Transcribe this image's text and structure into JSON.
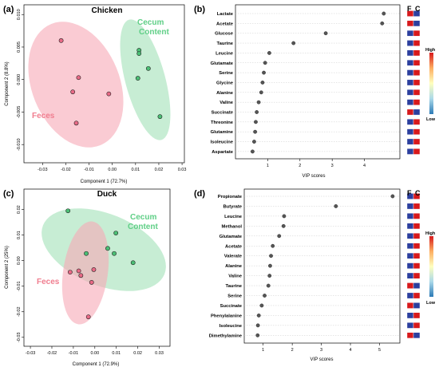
{
  "colors": {
    "feces": "#f07d8f",
    "cecum": "#5fcf86",
    "heat_high": "#d7191c",
    "heat_low": "#2c3f9e",
    "point": "#555555"
  },
  "chart_data": [
    {
      "id": "a",
      "type": "scatter",
      "panel_label": "(a)",
      "title": "Chicken",
      "xlabel": "Component 1 (72.7%)",
      "ylabel": "Component 2 (8.8%)",
      "xlim": [
        -0.038,
        0.031
      ],
      "ylim": [
        -0.0128,
        0.0115
      ],
      "xticks": [
        -0.03,
        -0.02,
        -0.01,
        0.0,
        0.01,
        0.02,
        0.03
      ],
      "xtick_labels": [
        "-0.03",
        "-0.02",
        "-0.01",
        "0.00",
        "0.01",
        "0.02",
        "0.03"
      ],
      "yticks": [
        -0.01,
        -0.005,
        0.0,
        0.005,
        0.01
      ],
      "ytick_labels": [
        "-0.010",
        "-0.005",
        "0.000",
        "0.005",
        "0.010"
      ],
      "grid": false,
      "series": [
        {
          "name": "Feces",
          "points": [
            [
              -0.022,
              0.006
            ],
            [
              -0.0145,
              0.0003
            ],
            [
              -0.017,
              -0.0019
            ],
            [
              -0.0015,
              -0.0022
            ],
            [
              -0.0155,
              -0.0067
            ]
          ]
        },
        {
          "name": "Cecum Content",
          "points": [
            [
              0.0115,
              0.0045
            ],
            [
              0.0115,
              0.004
            ],
            [
              0.0155,
              0.0017
            ],
            [
              0.011,
              0.0002
            ],
            [
              0.0205,
              -0.0057
            ]
          ]
        }
      ]
    },
    {
      "id": "b",
      "type": "scatter",
      "panel_label": "(b)",
      "title": "",
      "xlabel": "VIP scores",
      "xlim": [
        0.0,
        5.1
      ],
      "xticks": [
        1,
        2,
        3,
        4
      ],
      "xtick_labels": [
        "1",
        "2",
        "3",
        "4"
      ],
      "grid": true,
      "categories": [
        "Lactate",
        "Acetate",
        "Glucose",
        "Taurine",
        "Leucine",
        "Glutamate",
        "Serine",
        "Glycine",
        "Alanine",
        "Valine",
        "Succinate",
        "Threonine",
        "Glutamine",
        "Isoleucine",
        "Aspartate"
      ],
      "values": [
        4.6,
        4.55,
        2.8,
        1.8,
        1.05,
        0.92,
        0.88,
        0.84,
        0.8,
        0.72,
        0.66,
        0.63,
        0.61,
        0.58,
        0.53
      ],
      "heatmap_columns": [
        "F",
        "C"
      ],
      "heatmap_f_high": [
        true,
        true,
        false,
        false,
        false,
        false,
        false,
        false,
        false,
        false,
        true,
        false,
        false,
        false,
        false
      ],
      "colorbar": {
        "high": "High",
        "low": "Low"
      }
    },
    {
      "id": "c",
      "type": "scatter",
      "panel_label": "(c)",
      "title": "Duck",
      "xlabel": "Component 1 (72.9%)",
      "ylabel": "Component 2 (25%)",
      "xlim": [
        -0.033,
        0.035
      ],
      "ylim": [
        -0.0335,
        0.028
      ],
      "xticks": [
        -0.03,
        -0.02,
        -0.01,
        0.0,
        0.01,
        0.02,
        0.03
      ],
      "xtick_labels": [
        "-0.03",
        "-0.02",
        "-0.01",
        "0.00",
        "0.01",
        "0.02",
        "0.03"
      ],
      "yticks": [
        -0.03,
        -0.02,
        -0.01,
        0.0,
        0.01,
        0.02
      ],
      "ytick_labels": [
        "-0.03",
        "-0.02",
        "-0.01",
        "0.00",
        "0.01",
        "0.02"
      ],
      "grid": false,
      "series": [
        {
          "name": "Feces",
          "points": [
            [
              -0.0115,
              -0.0045
            ],
            [
              -0.0075,
              -0.004
            ],
            [
              -0.0065,
              -0.0058
            ],
            [
              -0.0005,
              -0.0035
            ],
            [
              -0.0015,
              -0.0085
            ],
            [
              -0.003,
              -0.022
            ]
          ]
        },
        {
          "name": "Cecum Content",
          "points": [
            [
              -0.0125,
              0.0195
            ],
            [
              0.0098,
              0.0108
            ],
            [
              0.006,
              0.0048
            ],
            [
              -0.004,
              0.0028
            ],
            [
              0.009,
              0.0028
            ],
            [
              0.0178,
              -0.0008
            ]
          ]
        }
      ]
    },
    {
      "id": "d",
      "type": "scatter",
      "panel_label": "(d)",
      "title": "",
      "xlabel": "VIP scores",
      "xlim": [
        0.35,
        5.7
      ],
      "xticks": [
        1,
        2,
        3,
        4,
        5
      ],
      "xtick_labels": [
        "1",
        "2",
        "3",
        "4",
        "5"
      ],
      "grid": true,
      "categories": [
        "Propionate",
        "Butyrate",
        "Leucine",
        "Methanol",
        "Glutamate",
        "Acetate",
        "Valerate",
        "Alanine",
        "Valine",
        "Taurine",
        "Serine",
        "Succinate",
        "Phenylalanine",
        "Isoleucine",
        "Dimethylamine"
      ],
      "values": [
        5.45,
        3.5,
        1.72,
        1.7,
        1.55,
        1.33,
        1.27,
        1.24,
        1.22,
        1.18,
        1.05,
        0.95,
        0.85,
        0.82,
        0.81
      ],
      "heatmap_columns": [
        "F",
        "C"
      ],
      "heatmap_f_high": [
        false,
        false,
        false,
        false,
        false,
        false,
        false,
        false,
        false,
        true,
        false,
        true,
        false,
        false,
        true
      ],
      "colorbar": {
        "high": "High",
        "low": "Low"
      }
    }
  ]
}
